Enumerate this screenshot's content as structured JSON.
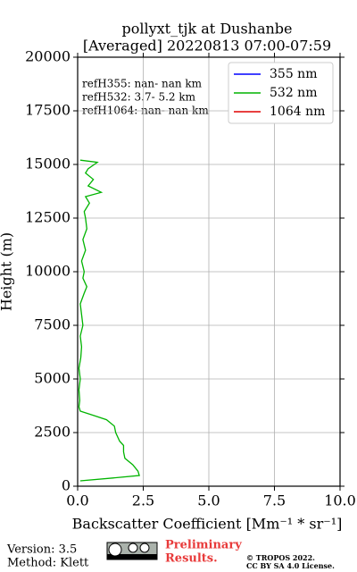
{
  "chart_data": {
    "type": "profile",
    "title": "pollyxt_tjk at Dushanbe",
    "subtitle": "[Averaged] 20220813 07:00-07:59",
    "x_label": "Backscatter Coefficient [Mm⁻¹ * sr⁻¹]",
    "y_label": "Height (m)",
    "xlim": [
      0,
      10
    ],
    "ylim": [
      0,
      20000
    ],
    "xticks": [
      {
        "value": 0,
        "label": "0.0"
      },
      2.5,
      {
        "value": 5,
        "label": "5.0"
      },
      7.5,
      {
        "value": 10,
        "label": "10.0"
      }
    ],
    "yticks": [
      0,
      2500,
      5000,
      7500,
      10000,
      12500,
      15000,
      17500,
      20000
    ],
    "grid": true,
    "legend": "upper right",
    "heights": [
      250,
      400,
      500,
      700,
      1000,
      1300,
      1600,
      1900,
      2100,
      2500,
      2800,
      3100,
      3300,
      3500,
      3700,
      4000,
      4500,
      5000,
      5500,
      6000,
      6500,
      7000,
      7500,
      8000,
      8500,
      9000,
      9300,
      9700,
      10000,
      10500,
      11000,
      11500,
      12000,
      12500,
      12800,
      13200,
      13500,
      13700,
      14000,
      14300,
      14600,
      14800,
      15100,
      15200
    ],
    "series": [
      {
        "name": "355 nm",
        "color": "#0000ff",
        "values": [
          null,
          null,
          null,
          null,
          null,
          null,
          null,
          null,
          null,
          null,
          null,
          null,
          null,
          null,
          null,
          null,
          null,
          null,
          null,
          null,
          null,
          null,
          null,
          null,
          null,
          null,
          null,
          null,
          null,
          null,
          null,
          null,
          null,
          null,
          null,
          null,
          null,
          null,
          null,
          null,
          null,
          null,
          null,
          null
        ]
      },
      {
        "name": "532 nm",
        "color": "#00b400",
        "values": [
          0.1,
          1.5,
          2.35,
          2.3,
          2.1,
          1.8,
          1.75,
          1.75,
          1.6,
          1.45,
          1.4,
          1.1,
          0.6,
          0.1,
          0.05,
          0.08,
          0.05,
          0.1,
          0.05,
          0.12,
          0.15,
          0.1,
          0.2,
          0.15,
          0.1,
          0.25,
          0.35,
          0.2,
          0.25,
          0.15,
          0.3,
          0.2,
          0.35,
          0.3,
          0.25,
          0.45,
          0.3,
          0.9,
          0.4,
          0.6,
          0.3,
          0.4,
          0.75,
          0.1
        ]
      },
      {
        "name": "1064 nm",
        "color": "#e00000",
        "values": [
          null,
          null,
          null,
          null,
          null,
          null,
          null,
          null,
          null,
          null,
          null,
          null,
          null,
          null,
          null,
          null,
          null,
          null,
          null,
          null,
          null,
          null,
          null,
          null,
          null,
          null,
          null,
          null,
          null,
          null,
          null,
          null,
          null,
          null,
          null,
          null,
          null,
          null,
          null,
          null,
          null,
          null,
          null,
          null
        ]
      }
    ],
    "annotations": [
      "refH355:  nan- nan km",
      "refH532:  3.7- 5.2 km",
      "refH1064:  nan- nan km"
    ]
  },
  "footer": {
    "version": "Version: 3.5",
    "method": "Method: Klett",
    "status": [
      "Preliminary",
      "Results."
    ],
    "copyright": "© TROPOS 2022.",
    "license": "CC BY SA 4.0 License."
  }
}
